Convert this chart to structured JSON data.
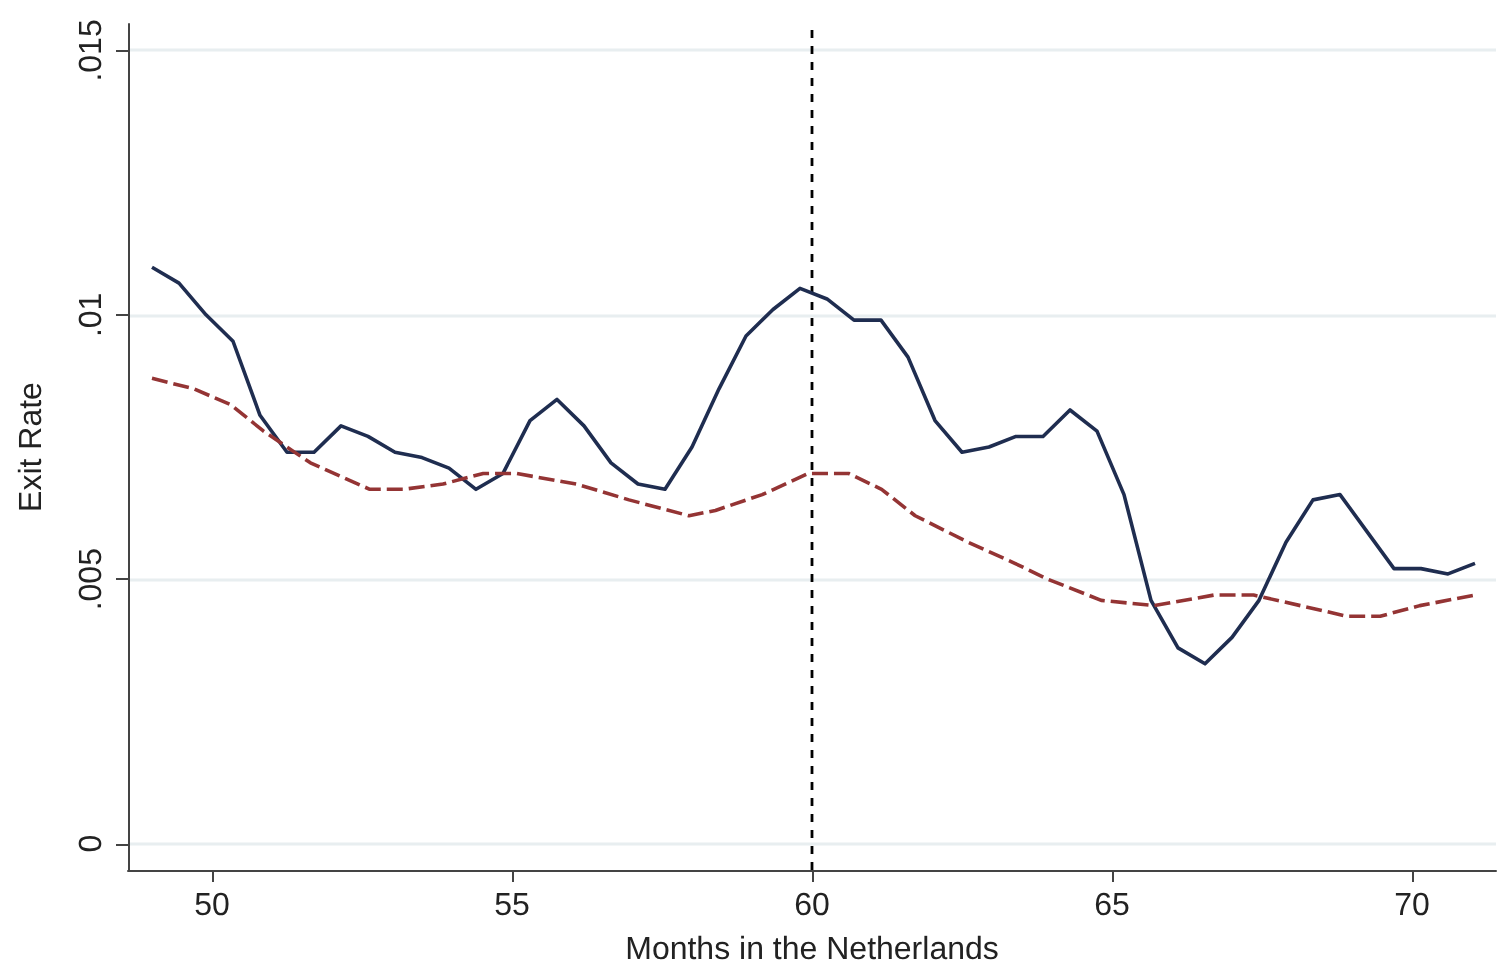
{
  "chart_data": {
    "type": "line",
    "xlabel": "Months in the Netherlands",
    "ylabel": "Exit Rate",
    "xlim": [
      48.6,
      71.4
    ],
    "xticks": [
      50,
      55,
      60,
      65,
      70
    ],
    "ylim": [
      -0.0005,
      0.0155
    ],
    "yticks": [
      0,
      {
        "value": 0.005,
        "label": ".005"
      },
      {
        "value": 0.01,
        "label": ".01"
      },
      {
        "value": 0.015,
        "label": ".015"
      }
    ],
    "grid": "y",
    "marker": "none",
    "ref_lines": [
      {
        "axis": "x",
        "value": 60,
        "label": null,
        "color": "#000000",
        "line_style": "dashed"
      }
    ],
    "series": [
      {
        "color": "#1f2d50",
        "line_style": "solid",
        "x": [
          49.0,
          49.45,
          49.9,
          50.35,
          50.8,
          51.25,
          51.7,
          52.15,
          52.6,
          53.05,
          53.5,
          53.95,
          54.4,
          54.85,
          55.3,
          55.75,
          56.2,
          56.65,
          57.1,
          57.55,
          58.0,
          58.45,
          58.9,
          59.35,
          59.8,
          60.25,
          60.7,
          61.15,
          61.6,
          62.05,
          62.5,
          62.95,
          63.4,
          63.85,
          64.3,
          64.75,
          65.2,
          65.65,
          66.1,
          66.55,
          67.0,
          67.45,
          67.9,
          68.35,
          68.8,
          69.25,
          69.7,
          70.15,
          70.6,
          71.05
        ],
        "values": [
          0.0109,
          0.0106,
          0.01,
          0.0095,
          0.0081,
          0.0074,
          0.0074,
          0.0079,
          0.0077,
          0.0074,
          0.0073,
          0.0071,
          0.0067,
          0.007,
          0.008,
          0.0084,
          0.0079,
          0.0072,
          0.0068,
          0.0067,
          0.0075,
          0.0086,
          0.0096,
          0.0101,
          0.0105,
          0.0103,
          0.0099,
          0.0099,
          0.0092,
          0.008,
          0.0074,
          0.0075,
          0.0077,
          0.0077,
          0.0082,
          0.0078,
          0.0066,
          0.0046,
          0.0037,
          0.0034,
          0.0039,
          0.0046,
          0.0057,
          0.0065,
          0.0066,
          0.0059,
          0.0052,
          0.0052,
          0.0051,
          0.0053
        ]
      },
      {
        "color": "#943434",
        "line_style": "dashed",
        "x": [
          49.0,
          49.7,
          50.31,
          50.86,
          51.64,
          52.63,
          53.19,
          53.85,
          54.52,
          55.07,
          56.07,
          56.95,
          57.95,
          58.39,
          59.17,
          59.94,
          60.61,
          61.16,
          61.72,
          62.6,
          63.38,
          63.93,
          64.82,
          65.7,
          66.7,
          67.36,
          68.14,
          68.91,
          69.47,
          70.13,
          71.05
        ],
        "values": [
          0.0088,
          0.0086,
          0.0083,
          0.0078,
          0.0072,
          0.0067,
          0.0067,
          0.0068,
          0.007,
          0.007,
          0.0068,
          0.0065,
          0.0062,
          0.0063,
          0.0066,
          0.007,
          0.007,
          0.0067,
          0.0062,
          0.0057,
          0.0053,
          0.005,
          0.0046,
          0.0045,
          0.0047,
          0.0047,
          0.0045,
          0.0043,
          0.0043,
          0.0045,
          0.0047
        ]
      }
    ]
  }
}
